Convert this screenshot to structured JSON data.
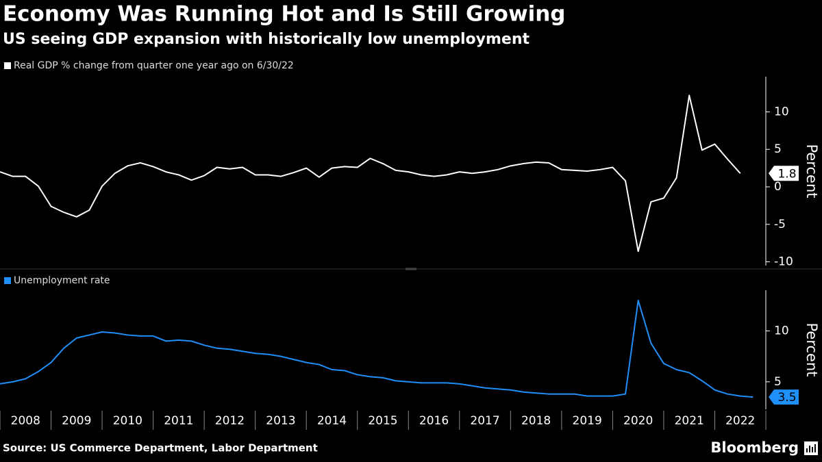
{
  "title": "Economy Was Running Hot and Is Still Growing",
  "subtitle": "US seeing GDP expansion with historically low unemployment",
  "source": "Source: US Commerce Department, Labor Department",
  "brand": "Bloomberg",
  "chart_data": [
    {
      "type": "line",
      "y_label": "Percent",
      "xlim": [
        2008,
        2023
      ],
      "xticks": [
        2008,
        2009,
        2010,
        2011,
        2012,
        2013,
        2014,
        2015,
        2016,
        2017,
        2018,
        2019,
        2020,
        2021,
        2022
      ],
      "ylim": [
        -10.5,
        14.7
      ],
      "yticks": [
        -10,
        -5,
        0,
        5,
        10
      ],
      "series": [
        {
          "name": "Real GDP % change from quarter one year ago on 6/30/22",
          "color": "#ffffff",
          "x": [
            2008,
            2008.25,
            2008.5,
            2008.75,
            2009,
            2009.25,
            2009.5,
            2009.75,
            2010,
            2010.25,
            2010.5,
            2010.75,
            2011,
            2011.25,
            2011.5,
            2011.75,
            2012,
            2012.25,
            2012.5,
            2012.75,
            2013,
            2013.25,
            2013.5,
            2013.75,
            2014,
            2014.25,
            2014.5,
            2014.75,
            2015,
            2015.25,
            2015.5,
            2015.75,
            2016,
            2016.25,
            2016.5,
            2016.75,
            2017,
            2017.25,
            2017.5,
            2017.75,
            2018,
            2018.25,
            2018.5,
            2018.75,
            2019,
            2019.25,
            2019.5,
            2019.75,
            2020,
            2020.25,
            2020.5,
            2020.75,
            2021,
            2021.25,
            2021.5,
            2021.75,
            2022,
            2022.25,
            2022.5
          ],
          "values": [
            2.0,
            1.4,
            1.4,
            0.1,
            -2.6,
            -3.4,
            -4.0,
            -3.1,
            0.1,
            1.8,
            2.8,
            3.2,
            2.7,
            2.0,
            1.6,
            0.9,
            1.5,
            2.6,
            2.4,
            2.6,
            1.6,
            1.6,
            1.4,
            1.9,
            2.5,
            1.3,
            2.5,
            2.7,
            2.6,
            3.8,
            3.1,
            2.2,
            2.0,
            1.6,
            1.4,
            1.6,
            2.0,
            1.8,
            2.0,
            2.3,
            2.8,
            3.1,
            3.3,
            3.2,
            2.3,
            2.2,
            2.1,
            2.3,
            2.6,
            0.8,
            -8.6,
            -2.0,
            -1.5,
            1.2,
            12.2,
            4.9,
            5.7,
            3.7,
            1.8
          ]
        }
      ]
    },
    {
      "type": "line",
      "y_label": "Percent",
      "xlim": [
        2008,
        2023
      ],
      "xticks": [
        2008,
        2009,
        2010,
        2011,
        2012,
        2013,
        2014,
        2015,
        2016,
        2017,
        2018,
        2019,
        2020,
        2021,
        2022
      ],
      "ylim": [
        2.3,
        14.0
      ],
      "yticks": [
        5,
        10
      ],
      "series": [
        {
          "name": "Unemployment rate",
          "color": "#1f8ffa",
          "x": [
            2008,
            2008.25,
            2008.5,
            2008.75,
            2009,
            2009.25,
            2009.5,
            2009.75,
            2010,
            2010.25,
            2010.5,
            2010.75,
            2011,
            2011.25,
            2011.5,
            2011.75,
            2012,
            2012.25,
            2012.5,
            2012.75,
            2013,
            2013.25,
            2013.5,
            2013.75,
            2014,
            2014.25,
            2014.5,
            2014.75,
            2015,
            2015.25,
            2015.5,
            2015.75,
            2016,
            2016.25,
            2016.5,
            2016.75,
            2017,
            2017.25,
            2017.5,
            2017.75,
            2018,
            2018.25,
            2018.5,
            2018.75,
            2019,
            2019.25,
            2019.5,
            2019.75,
            2020,
            2020.25,
            2020.5,
            2020.75,
            2021,
            2021.25,
            2021.5,
            2021.75,
            2022,
            2022.25,
            2022.5,
            2022.75
          ],
          "values": [
            4.8,
            5.0,
            5.3,
            6.0,
            6.9,
            8.3,
            9.3,
            9.6,
            9.9,
            9.8,
            9.6,
            9.5,
            9.5,
            9.0,
            9.1,
            9.0,
            8.6,
            8.3,
            8.2,
            8.0,
            7.8,
            7.7,
            7.5,
            7.2,
            6.9,
            6.7,
            6.2,
            6.1,
            5.7,
            5.5,
            5.4,
            5.1,
            5.0,
            4.9,
            4.9,
            4.9,
            4.8,
            4.6,
            4.4,
            4.3,
            4.2,
            4.0,
            3.9,
            3.8,
            3.8,
            3.8,
            3.6,
            3.6,
            3.6,
            3.8,
            13.0,
            8.8,
            6.8,
            6.2,
            5.9,
            5.1,
            4.2,
            3.8,
            3.6,
            3.5
          ]
        }
      ]
    }
  ]
}
